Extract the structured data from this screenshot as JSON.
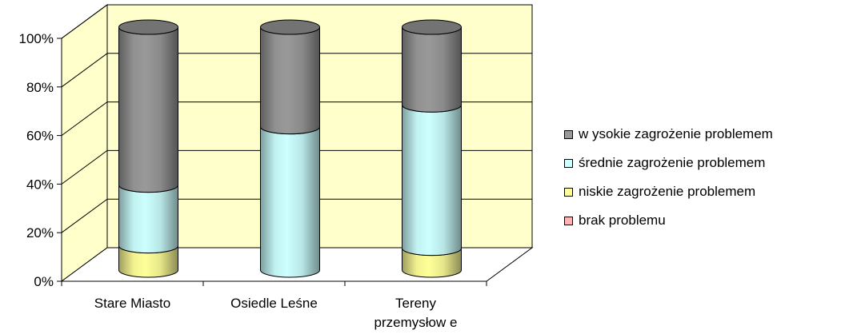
{
  "chart_data": {
    "type": "bar",
    "stacked": true,
    "percent": true,
    "three_d": true,
    "categories": [
      [
        "Stare Miasto"
      ],
      [
        "Osiedle Leśne"
      ],
      [
        "Tereny",
        "przemysłow e"
      ]
    ],
    "series": [
      {
        "name": "brak problemu",
        "color": "#ffb4b4",
        "values": [
          0,
          0,
          0
        ]
      },
      {
        "name": "niskie zagrożenie problemem",
        "color": "#ffff99",
        "values": [
          10,
          0,
          9
        ]
      },
      {
        "name": "średnie zagrożenie problemem",
        "color": "#ccffff",
        "values": [
          25,
          59,
          59
        ]
      },
      {
        "name": "w ysokie zagrożenie problemem",
        "color": "#999999",
        "values": [
          65,
          41,
          32
        ]
      }
    ],
    "yticks": [
      "0%",
      "20%",
      "40%",
      "60%",
      "80%",
      "100%"
    ],
    "ylim": [
      0,
      100
    ],
    "grid": true,
    "wall_color": "#ffffcc",
    "legend_position": "right"
  }
}
